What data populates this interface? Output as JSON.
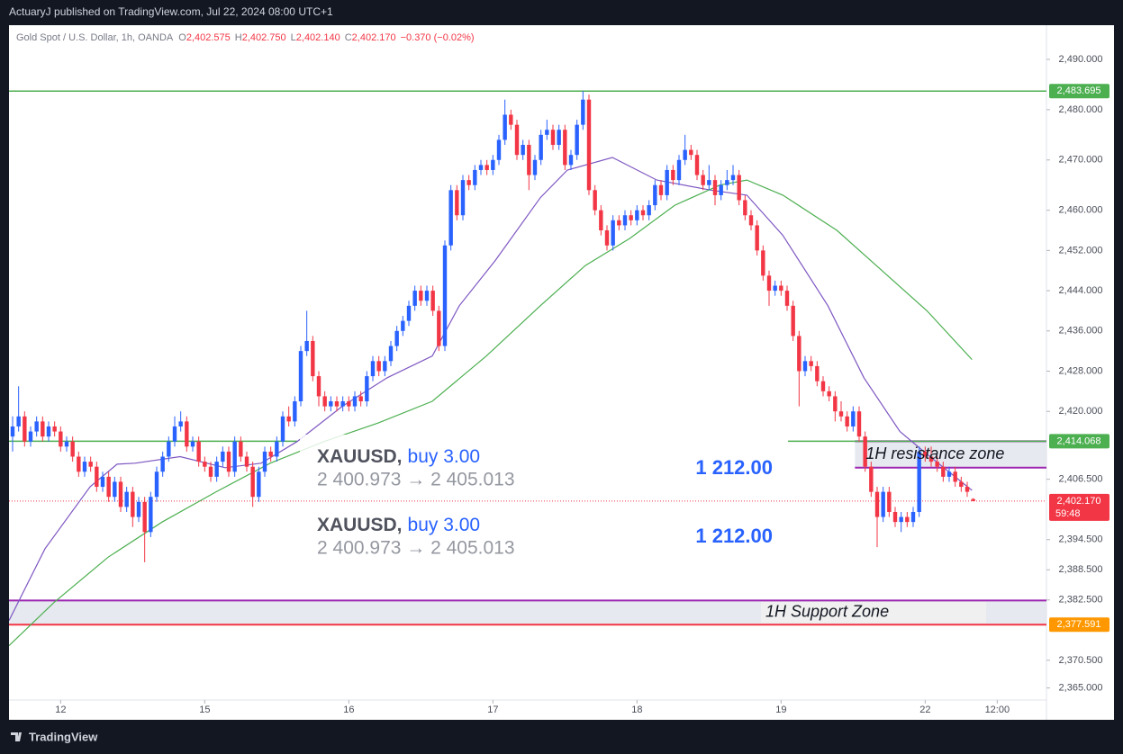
{
  "header": {
    "text": "ActuaryJ published on TradingView.com, Jul 22, 2024 08:00 UTC+1"
  },
  "footer": {
    "logo": "TradingView"
  },
  "chart_data": {
    "type": "candlestick",
    "legend": {
      "symbol": "Gold Spot / U.S. Dollar, 1h, OANDA",
      "o_label": "O",
      "o": "2,402.575",
      "h_label": "H",
      "h": "2,402.750",
      "l_label": "L",
      "l": "2,402.140",
      "c_label": "C",
      "c": "2,402.170",
      "change": "−0.370 (−0.02%)"
    },
    "up_color": "#2962ff",
    "down_color": "#f23645",
    "xlim": [
      -0.6,
      172.2
    ],
    "xticks": [
      {
        "value": 8,
        "label": "12"
      },
      {
        "value": 32,
        "label": "15"
      },
      {
        "value": 56,
        "label": "16"
      },
      {
        "value": 80,
        "label": "17"
      },
      {
        "value": 104,
        "label": "18"
      },
      {
        "value": 128,
        "label": "19"
      },
      {
        "value": 152,
        "label": "22"
      },
      {
        "value": 164,
        "label": "12:00"
      }
    ],
    "ylim": [
      2362.6,
      2496.8
    ],
    "yticks": [
      {
        "value": 2490,
        "label": "2,490.000"
      },
      {
        "value": 2480,
        "label": "2,480.000"
      },
      {
        "value": 2470,
        "label": "2,470.000"
      },
      {
        "value": 2460,
        "label": "2,460.000"
      },
      {
        "value": 2452,
        "label": "2,452.000"
      },
      {
        "value": 2444,
        "label": "2,444.000"
      },
      {
        "value": 2436,
        "label": "2,436.000"
      },
      {
        "value": 2428,
        "label": "2,428.000"
      },
      {
        "value": 2420,
        "label": "2,420.000"
      },
      {
        "value": 2406.5,
        "label": "2,406.500"
      },
      {
        "value": 2394.5,
        "label": "2,394.500"
      },
      {
        "value": 2388.5,
        "label": "2,388.500"
      },
      {
        "value": 2382.5,
        "label": "2,382.500"
      },
      {
        "value": 2370.5,
        "label": "2,370.500"
      },
      {
        "value": 2365,
        "label": "2,365.000"
      }
    ],
    "candles": [
      [
        2415,
        2419,
        2412,
        2417
      ],
      [
        2417,
        2425,
        2416,
        2419
      ],
      [
        2419,
        2420,
        2413,
        2414
      ],
      [
        2414,
        2417,
        2413,
        2416
      ],
      [
        2416,
        2419,
        2415,
        2418
      ],
      [
        2418,
        2419,
        2414,
        2415
      ],
      [
        2415,
        2418,
        2414,
        2417
      ],
      [
        2417,
        2418,
        2415,
        2416
      ],
      [
        2416,
        2417,
        2412,
        2413
      ],
      [
        2413,
        2415,
        2412,
        2414
      ],
      [
        2414,
        2415,
        2410,
        2411
      ],
      [
        2411,
        2412,
        2407,
        2408
      ],
      [
        2408,
        2411,
        2407,
        2410
      ],
      [
        2410,
        2411,
        2408,
        2409
      ],
      [
        2409,
        2410,
        2404,
        2405
      ],
      [
        2405,
        2408,
        2404,
        2407
      ],
      [
        2407,
        2408,
        2402,
        2403
      ],
      [
        2403,
        2407,
        2402,
        2406
      ],
      [
        2406,
        2407,
        2400,
        2401
      ],
      [
        2401,
        2405,
        2400,
        2404
      ],
      [
        2404,
        2405,
        2397,
        2399
      ],
      [
        2399,
        2403,
        2398,
        2402
      ],
      [
        2402,
        2403,
        2390,
        2396
      ],
      [
        2396,
        2404,
        2395,
        2403
      ],
      [
        2403,
        2409,
        2402,
        2408
      ],
      [
        2408,
        2412,
        2407,
        2411
      ],
      [
        2411,
        2415,
        2410,
        2414
      ],
      [
        2414,
        2419,
        2413,
        2417
      ],
      [
        2417,
        2420,
        2416,
        2418
      ],
      [
        2418,
        2419,
        2412,
        2413
      ],
      [
        2413,
        2415,
        2412,
        2414
      ],
      [
        2414,
        2415,
        2409,
        2410
      ],
      [
        2410,
        2411,
        2408,
        2409
      ],
      [
        2409,
        2410,
        2406,
        2407
      ],
      [
        2407,
        2411,
        2406,
        2410
      ],
      [
        2410,
        2413,
        2409,
        2412
      ],
      [
        2412,
        2413,
        2407,
        2408
      ],
      [
        2408,
        2415,
        2407,
        2414
      ],
      [
        2414,
        2415,
        2410,
        2411
      ],
      [
        2411,
        2412,
        2408,
        2409
      ],
      [
        2409,
        2410,
        2401,
        2403
      ],
      [
        2403,
        2409,
        2402,
        2408
      ],
      [
        2408,
        2413,
        2407,
        2412
      ],
      [
        2412,
        2413,
        2410,
        2411
      ],
      [
        2411,
        2415,
        2410,
        2414
      ],
      [
        2414,
        2420,
        2413,
        2419
      ],
      [
        2419,
        2421,
        2417,
        2418
      ],
      [
        2418,
        2423,
        2417,
        2422
      ],
      [
        2422,
        2433,
        2421,
        2432
      ],
      [
        2432,
        2440,
        2431,
        2434
      ],
      [
        2434,
        2435,
        2426,
        2427
      ],
      [
        2427,
        2428,
        2421,
        2423
      ],
      [
        2423,
        2424,
        2420,
        2421
      ],
      [
        2421,
        2423,
        2420,
        2422
      ],
      [
        2422,
        2423,
        2420,
        2421
      ],
      [
        2421,
        2423,
        2420,
        2422
      ],
      [
        2422,
        2423,
        2420,
        2421
      ],
      [
        2421,
        2424,
        2420,
        2423
      ],
      [
        2423,
        2424,
        2421,
        2422
      ],
      [
        2422,
        2428,
        2421,
        2427
      ],
      [
        2427,
        2431,
        2426,
        2430
      ],
      [
        2430,
        2431,
        2427,
        2428
      ],
      [
        2428,
        2431,
        2427,
        2430
      ],
      [
        2430,
        2434,
        2429,
        2433
      ],
      [
        2433,
        2437,
        2432,
        2436
      ],
      [
        2436,
        2439,
        2435,
        2438
      ],
      [
        2438,
        2442,
        2437,
        2441
      ],
      [
        2441,
        2445,
        2440,
        2444
      ],
      [
        2444,
        2445,
        2441,
        2442
      ],
      [
        2442,
        2445,
        2441,
        2444
      ],
      [
        2444,
        2445,
        2439,
        2440
      ],
      [
        2440,
        2441,
        2432,
        2433
      ],
      [
        2433,
        2454,
        2432,
        2453
      ],
      [
        2453,
        2465,
        2452,
        2464
      ],
      [
        2464,
        2465,
        2458,
        2459
      ],
      [
        2459,
        2467,
        2458,
        2466
      ],
      [
        2466,
        2467,
        2464,
        2465
      ],
      [
        2465,
        2469,
        2464,
        2468
      ],
      [
        2468,
        2470,
        2467,
        2469
      ],
      [
        2469,
        2470,
        2467,
        2468
      ],
      [
        2468,
        2471,
        2467,
        2470
      ],
      [
        2470,
        2475,
        2469,
        2474
      ],
      [
        2474,
        2482,
        2473,
        2479
      ],
      [
        2479,
        2480,
        2476,
        2477
      ],
      [
        2477,
        2478,
        2470,
        2471
      ],
      [
        2471,
        2474,
        2470,
        2473
      ],
      [
        2473,
        2474,
        2464,
        2467
      ],
      [
        2467,
        2471,
        2466,
        2470
      ],
      [
        2470,
        2476,
        2469,
        2475
      ],
      [
        2475,
        2478,
        2474,
        2476
      ],
      [
        2476,
        2477,
        2472,
        2473
      ],
      [
        2473,
        2477,
        2472,
        2476
      ],
      [
        2476,
        2477,
        2468,
        2469
      ],
      [
        2469,
        2472,
        2468,
        2471
      ],
      [
        2471,
        2478,
        2470,
        2477
      ],
      [
        2477,
        2483.7,
        2476,
        2482
      ],
      [
        2482,
        2483,
        2463,
        2464
      ],
      [
        2464,
        2465,
        2459,
        2460
      ],
      [
        2460,
        2461,
        2455,
        2456
      ],
      [
        2456,
        2457,
        2452,
        2453
      ],
      [
        2453,
        2459,
        2452,
        2458
      ],
      [
        2458,
        2459,
        2456,
        2457
      ],
      [
        2457,
        2460,
        2456,
        2459
      ],
      [
        2459,
        2460,
        2457,
        2458
      ],
      [
        2458,
        2461,
        2457,
        2460
      ],
      [
        2460,
        2461,
        2458,
        2459
      ],
      [
        2459,
        2462,
        2458,
        2461
      ],
      [
        2461,
        2466,
        2460,
        2465
      ],
      [
        2465,
        2466,
        2462,
        2463
      ],
      [
        2463,
        2469,
        2462,
        2468
      ],
      [
        2468,
        2469,
        2465,
        2466
      ],
      [
        2466,
        2471,
        2465,
        2470
      ],
      [
        2470,
        2475,
        2469,
        2472
      ],
      [
        2472,
        2473,
        2470,
        2471
      ],
      [
        2471,
        2472,
        2466,
        2467
      ],
      [
        2467,
        2468,
        2464,
        2465
      ],
      [
        2465,
        2469,
        2464,
        2466
      ],
      [
        2466,
        2467,
        2461,
        2463
      ],
      [
        2463,
        2466,
        2462,
        2465
      ],
      [
        2465,
        2468,
        2464,
        2466
      ],
      [
        2466,
        2469,
        2465,
        2467
      ],
      [
        2467,
        2468,
        2461,
        2462
      ],
      [
        2462,
        2463,
        2458,
        2459
      ],
      [
        2459,
        2460,
        2456,
        2457
      ],
      [
        2457,
        2458,
        2451,
        2452
      ],
      [
        2452,
        2453,
        2446,
        2447
      ],
      [
        2447,
        2448,
        2441,
        2444
      ],
      [
        2444,
        2446,
        2443,
        2445
      ],
      [
        2445,
        2446,
        2443,
        2444
      ],
      [
        2444,
        2445,
        2440,
        2441
      ],
      [
        2441,
        2442,
        2434,
        2435
      ],
      [
        2435,
        2436,
        2421,
        2428
      ],
      [
        2428,
        2431,
        2427,
        2430
      ],
      [
        2430,
        2431,
        2428,
        2429
      ],
      [
        2429,
        2430,
        2425,
        2426
      ],
      [
        2426,
        2427,
        2423,
        2424
      ],
      [
        2424,
        2425,
        2422,
        2423
      ],
      [
        2423,
        2424,
        2418,
        2420
      ],
      [
        2420,
        2422,
        2418,
        2419
      ],
      [
        2419,
        2420,
        2416,
        2417
      ],
      [
        2417,
        2421,
        2416,
        2420
      ],
      [
        2420,
        2421,
        2414,
        2415
      ],
      [
        2415,
        2416,
        2408,
        2409
      ],
      [
        2409,
        2410,
        2403,
        2404
      ],
      [
        2404,
        2405,
        2393,
        2399
      ],
      [
        2399,
        2405,
        2398,
        2404
      ],
      [
        2404,
        2405,
        2399,
        2400
      ],
      [
        2400,
        2401,
        2397,
        2398
      ],
      [
        2398,
        2400,
        2396,
        2399
      ],
      [
        2399,
        2400,
        2397,
        2398
      ],
      [
        2398,
        2401,
        2397,
        2400
      ],
      [
        2400,
        2413,
        2399,
        2412
      ],
      [
        2412,
        2413,
        2410,
        2411
      ],
      [
        2411,
        2413,
        2409,
        2410
      ],
      [
        2410,
        2411,
        2408,
        2409
      ],
      [
        2409,
        2410,
        2406,
        2407
      ],
      [
        2407,
        2409,
        2406,
        2408
      ],
      [
        2408,
        2409,
        2405,
        2406
      ],
      [
        2406,
        2407,
        2404,
        2405
      ],
      [
        2405,
        2406,
        2403,
        2404
      ],
      [
        2402.575,
        2402.75,
        2402.14,
        2402.17
      ]
    ],
    "moving_averages": [
      {
        "color": "#7e57c2",
        "x": [
          -0.6,
          5.4,
          12.9,
          17.4,
          20.4,
          27.9,
          35.4,
          41.4,
          47.4,
          54.9,
          62.4,
          69.9,
          74.4,
          80.4,
          87.9,
          92.4,
          99.9,
          107.3,
          116.3,
          122.3,
          128.3,
          135.8,
          141.8,
          147.8,
          152.3,
          159.8
        ],
        "values": [
          2378.4,
          2392.7,
          2405,
          2409.5,
          2409.7,
          2411,
          2408.8,
          2409.7,
          2414,
          2421,
          2426.7,
          2431,
          2441,
          2450,
          2462.5,
          2468,
          2470.5,
          2466,
          2464,
          2463,
          2455,
          2441,
          2426.7,
          2416,
          2411.5,
          2404.3
        ]
      },
      {
        "color": "#4caf50",
        "x": [
          -0.6,
          6.9,
          15.9,
          24.9,
          33.9,
          42.9,
          51.9,
          60.9,
          69.9,
          78.9,
          87.9,
          95.4,
          102.8,
          110.3,
          117.8,
          122.3,
          128.3,
          137.3,
          144.8,
          152.3,
          159.8
        ],
        "values": [
          2373.4,
          2382,
          2391,
          2398,
          2404,
          2409.7,
          2414,
          2417.7,
          2422,
          2431,
          2441,
          2449,
          2454.4,
          2461,
          2465,
          2466,
          2463,
          2456,
          2448,
          2440,
          2430.3
        ]
      }
    ],
    "levels": [
      {
        "value": 2483.695,
        "color": "#4caf50",
        "segments": [
          [
            -0.6,
            172.2
          ]
        ]
      },
      {
        "value": 2414.068,
        "color": "#4caf50",
        "segments": [
          [
            -0.6,
            47.4
          ],
          [
            129.1,
            172.2
          ]
        ]
      }
    ],
    "zones": [
      {
        "top": 2382.4,
        "bottom": 2377.591,
        "x": [
          -0.6,
          172.2
        ],
        "top_color": "#9c27b0",
        "bottom_color": "#f23645",
        "label": "1H Support Zone"
      },
      {
        "top": 2414.068,
        "bottom": 2408.8,
        "x": [
          140.3,
          172.2
        ],
        "top_color": "#9c27b0",
        "bottom_color": "#9c27b0",
        "label": "1H resistance zone"
      }
    ],
    "axis_labels": [
      {
        "value": 2483.695,
        "label": "2,483.695",
        "color": "#4caf50"
      },
      {
        "value": 2414.068,
        "label": "2,414.068",
        "color": "#4caf50"
      },
      {
        "value": 2377.591,
        "label": "2,377.591",
        "color": "#ff9800"
      }
    ],
    "last_price": {
      "value": 2402.17,
      "label": "2,402.170",
      "countdown": "59:48",
      "color": "#f23645"
    },
    "trade_boxes": [
      {
        "symbol": "XAUUSD,",
        "side": "buy 3.00",
        "prices": "2 400.973 → 2 405.013",
        "amount": "1 212.00"
      },
      {
        "symbol": "XAUUSD,",
        "side": "buy 3.00",
        "prices": "2 400.973 → 2 405.013",
        "amount": "1 212.00"
      }
    ]
  }
}
